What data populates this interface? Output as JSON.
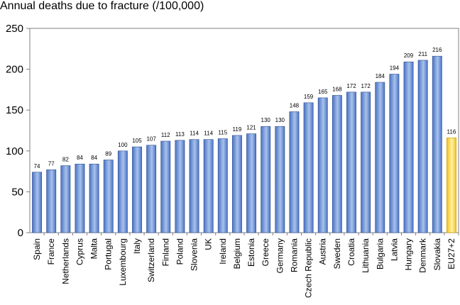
{
  "chart_data": {
    "type": "bar",
    "title": "Annual deaths due to fracture (/100,000)",
    "xlabel": "",
    "ylabel": "",
    "ylim": [
      0,
      250
    ],
    "yticks": [
      0,
      50,
      100,
      150,
      200,
      250
    ],
    "grid": false,
    "legend": "none",
    "categories": [
      "Spain",
      "France",
      "Netherlands",
      "Cyprus",
      "Malta",
      "Portugal",
      "Luxembourg",
      "Italy",
      "Switzerland",
      "Finland",
      "Poland",
      "Slovenia",
      "UK",
      "Ireland",
      "Belgium",
      "Estonia",
      "Greece",
      "Germany",
      "Romania",
      "Czech Republic",
      "Austria",
      "Sweden",
      "Croatia",
      "Lithuania",
      "Bulgaria",
      "Latvia",
      "Hungary",
      "Denmark",
      "Slovakia",
      "EU27+2"
    ],
    "values": [
      74,
      77,
      82,
      84,
      84,
      89,
      100,
      105,
      107,
      112,
      113,
      114,
      114,
      115,
      119,
      121,
      130,
      130,
      148,
      159,
      165,
      168,
      172,
      172,
      184,
      194,
      209,
      211,
      216,
      116
    ],
    "colors": {
      "bar": "#4a73c4",
      "bar_light": "#a9c2ec",
      "highlight": "#f4c21a",
      "highlight_light": "#fff2a6"
    },
    "highlight_category": "EU27+2"
  }
}
